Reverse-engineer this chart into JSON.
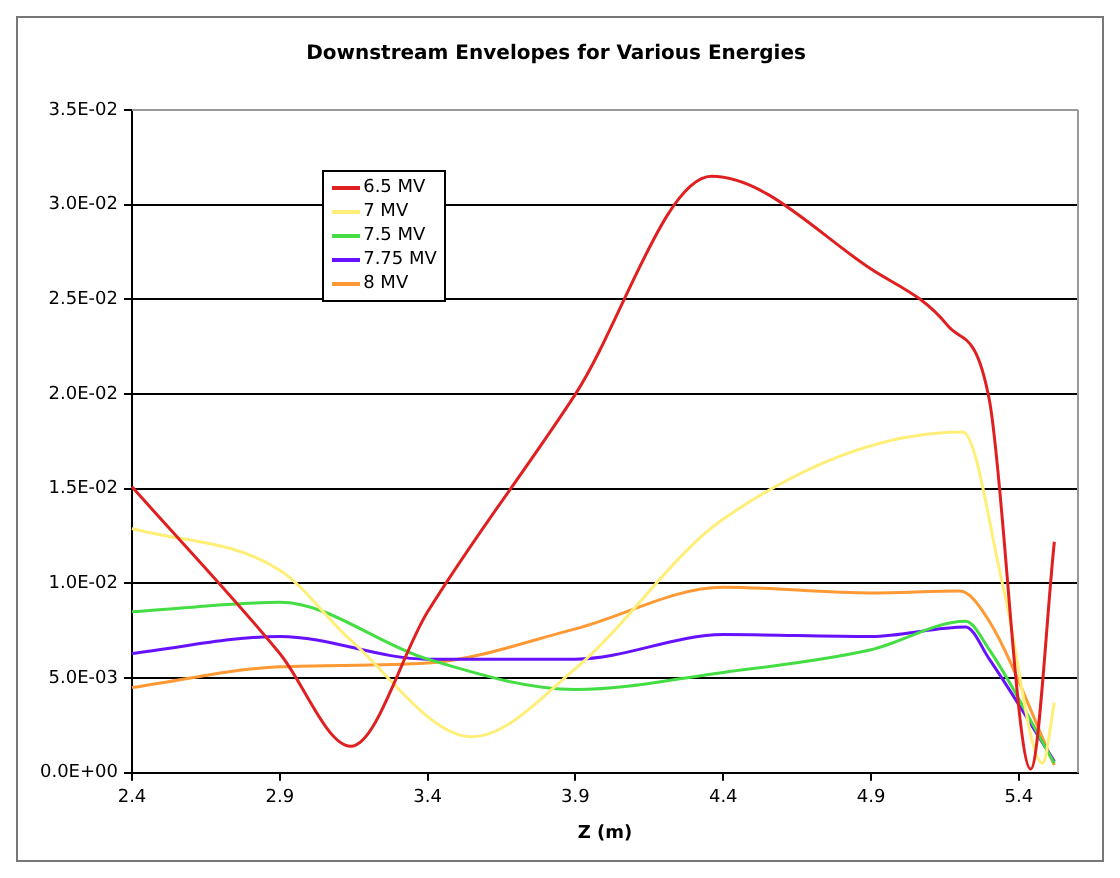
{
  "chart_data": {
    "type": "line",
    "title": "Downstream Envelopes for Various Energies",
    "xlabel": "Z (m)",
    "xlim": [
      2.4,
      5.6
    ],
    "xticks": [
      2.4,
      2.9,
      3.4,
      3.9,
      4.4,
      4.9,
      5.4
    ],
    "ylim": [
      0,
      0.035
    ],
    "yticks": [
      {
        "value": 0,
        "label": "0.0E+00"
      },
      {
        "value": 0.005,
        "label": "5.0E-03"
      },
      {
        "value": 0.01,
        "label": "1.0E-02"
      },
      {
        "value": 0.015,
        "label": "1.5E-02"
      },
      {
        "value": 0.02,
        "label": "2.0E-02"
      },
      {
        "value": 0.025,
        "label": "2.5E-02"
      },
      {
        "value": 0.03,
        "label": "3.0E-02"
      },
      {
        "value": 0.035,
        "label": "3.5E-02"
      }
    ],
    "grid": "y",
    "legend": "top left",
    "marker": "none",
    "line_style": "solid",
    "series": [
      {
        "name": "6.5 MV",
        "color": "#e02020",
        "x": [
          2.4,
          2.9,
          3.14,
          3.4,
          3.9,
          4.36,
          4.9,
          5.16,
          5.3,
          5.44,
          5.52
        ],
        "values": [
          0.0151,
          0.0063,
          0.0014,
          0.0085,
          0.02,
          0.0315,
          0.0266,
          0.0236,
          0.0197,
          0.0002,
          0.0122
        ]
      },
      {
        "name": "7 MV",
        "color": "#ffee77",
        "x": [
          2.4,
          2.9,
          3.14,
          3.55,
          3.9,
          4.4,
          5.21,
          5.35,
          5.48,
          5.52
        ],
        "values": [
          0.0129,
          0.0107,
          0.007,
          0.0019,
          0.0055,
          0.0134,
          0.018,
          0.0096,
          0.0005,
          0.0037
        ]
      },
      {
        "name": "7.5 MV",
        "color": "#44dd44",
        "x": [
          2.4,
          2.9,
          3.4,
          3.9,
          4.4,
          4.9,
          5.22,
          5.3,
          5.52
        ],
        "values": [
          0.0085,
          0.009,
          0.006,
          0.0044,
          0.0053,
          0.0065,
          0.008,
          0.0065,
          0.0005
        ]
      },
      {
        "name": "7.75 MV",
        "color": "#6611ff",
        "x": [
          2.4,
          2.9,
          3.4,
          3.9,
          4.4,
          4.9,
          5.22,
          5.3,
          5.52
        ],
        "values": [
          0.0063,
          0.0072,
          0.006,
          0.006,
          0.0073,
          0.0072,
          0.0077,
          0.006,
          0.0006
        ]
      },
      {
        "name": "8 MV",
        "color": "#ff9933",
        "x": [
          2.4,
          2.9,
          3.4,
          3.9,
          4.4,
          4.9,
          5.2,
          5.3,
          5.52
        ],
        "values": [
          0.0045,
          0.0056,
          0.0058,
          0.0076,
          0.0098,
          0.0095,
          0.0096,
          0.008,
          0.0004
        ]
      }
    ]
  }
}
